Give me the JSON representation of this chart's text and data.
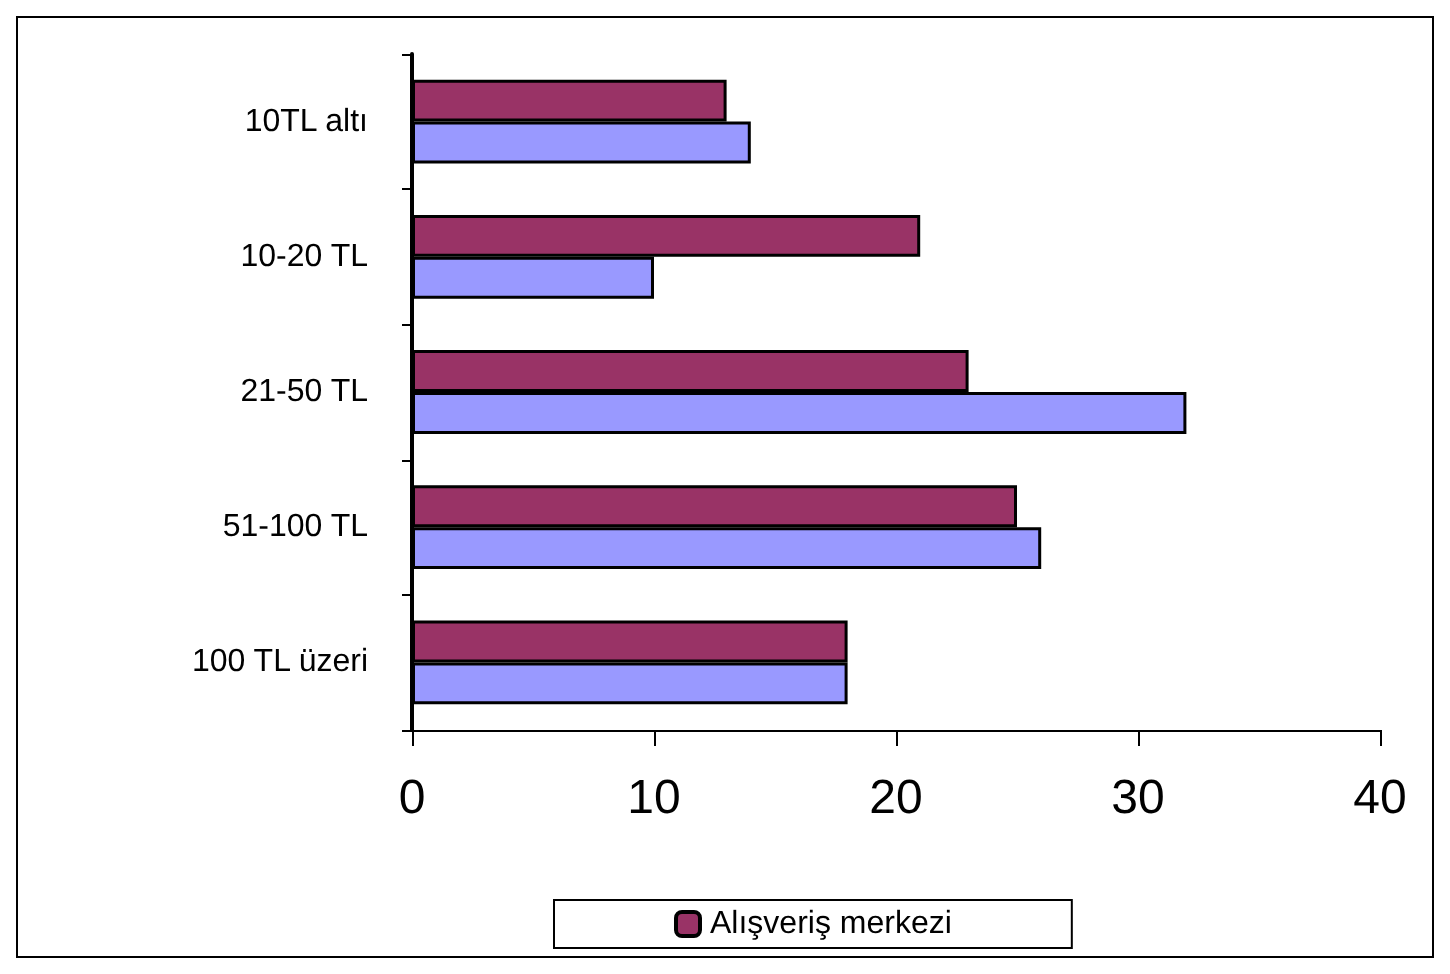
{
  "chart_data": {
    "type": "bar",
    "orientation": "horizontal",
    "categories": [
      "10TL altı",
      "10-20 TL",
      "21-50 TL",
      "51-100 TL",
      "100 TL üzeri"
    ],
    "series": [
      {
        "name": "Alışveriş merkezi",
        "color": "#993366",
        "values": [
          13,
          21,
          23,
          25,
          18
        ]
      },
      {
        "color": "#9999ff",
        "values": [
          14,
          10,
          32,
          26,
          18
        ]
      }
    ],
    "xlim": [
      0,
      40
    ],
    "xticks": [
      0,
      10,
      20,
      30,
      40
    ],
    "grid": false,
    "legend": "bottom"
  }
}
